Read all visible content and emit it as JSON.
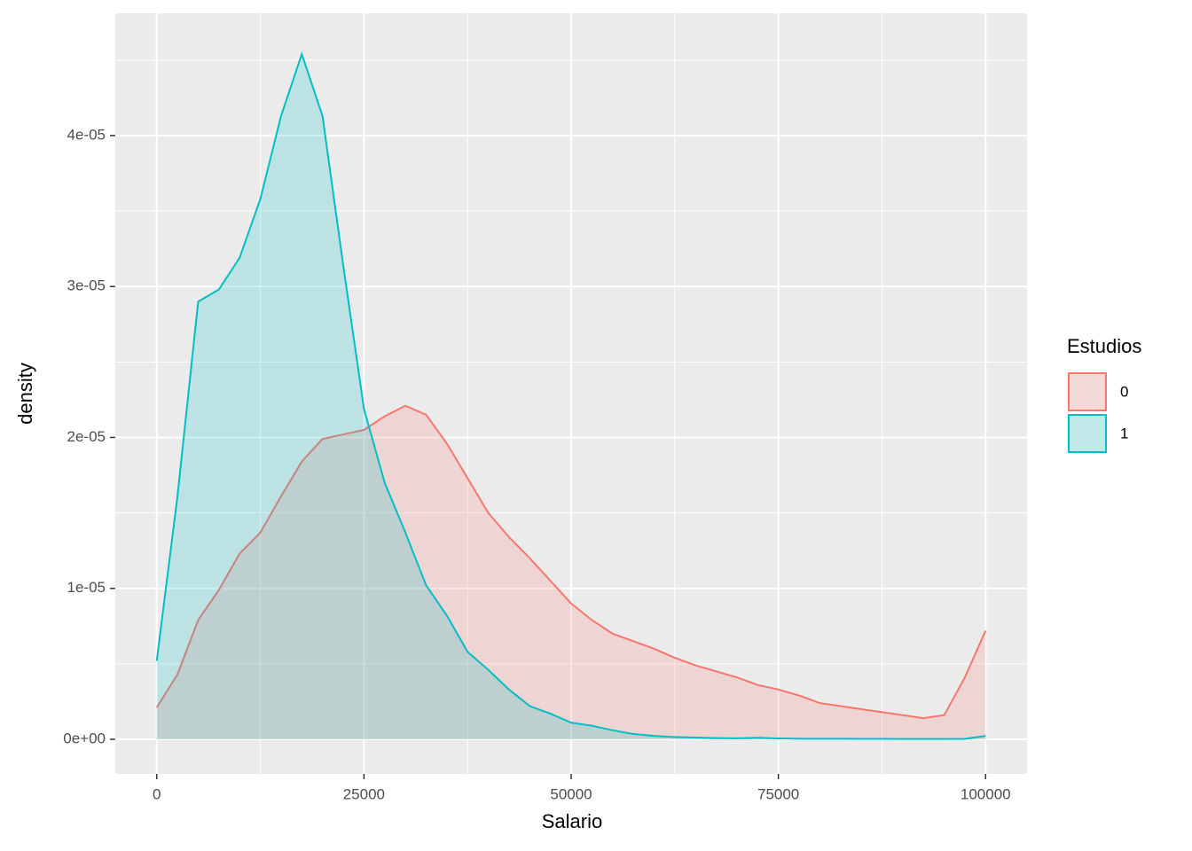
{
  "chart_data": {
    "type": "density",
    "x_label": "Salario",
    "y_label": "density",
    "legend_title": "Estudios",
    "legend_position": "right",
    "x": [
      0,
      2500,
      5000,
      7500,
      10000,
      12500,
      15000,
      17500,
      20000,
      22500,
      25000,
      27500,
      30000,
      32500,
      35000,
      37500,
      40000,
      42500,
      45000,
      47500,
      50000,
      52500,
      55000,
      57500,
      60000,
      62500,
      65000,
      67500,
      70000,
      72500,
      75000,
      77500,
      80000,
      82500,
      85000,
      87500,
      90000,
      92500,
      95000,
      97500,
      100000
    ],
    "series": [
      {
        "name": "0",
        "color": "#F8766D",
        "values": [
          2.1e-06,
          4.3e-06,
          7.9e-06,
          9.9e-06,
          1.23e-05,
          1.37e-05,
          1.61e-05,
          1.84e-05,
          1.99e-05,
          2.02e-05,
          2.05e-05,
          2.14e-05,
          2.21e-05,
          2.15e-05,
          1.96e-05,
          1.73e-05,
          1.5e-05,
          1.34e-05,
          1.2e-05,
          1.05e-05,
          9e-06,
          7.9e-06,
          7e-06,
          6.5e-06,
          6e-06,
          5.4e-06,
          4.9e-06,
          4.5e-06,
          4.1e-06,
          3.6e-06,
          3.3e-06,
          2.9e-06,
          2.4e-06,
          2.2e-06,
          2e-06,
          1.8e-06,
          1.6e-06,
          1.4e-06,
          1.6e-06,
          4.1e-06,
          7.2e-06
        ]
      },
      {
        "name": "1",
        "color": "#00BFC4",
        "values": [
          5.2e-06,
          1.61e-05,
          2.9e-05,
          2.98e-05,
          3.19e-05,
          3.58e-05,
          4.13e-05,
          4.54e-05,
          4.13e-05,
          3.14e-05,
          2.19e-05,
          1.7e-05,
          1.37e-05,
          1.02e-05,
          8.2e-06,
          5.8e-06,
          4.6e-06,
          3.3e-06,
          2.2e-06,
          1.7e-06,
          1.1e-06,
          9e-07,
          6e-07,
          3.5e-07,
          2.3e-07,
          1.5e-07,
          1.2e-07,
          8e-08,
          7e-08,
          1e-07,
          6e-08,
          4e-08,
          4e-08,
          4e-08,
          3e-08,
          3e-08,
          2e-08,
          2e-08,
          2e-08,
          3e-08,
          2.3e-07
        ]
      }
    ],
    "xlim": [
      -5000,
      105000
    ],
    "xticks": [
      0,
      25000,
      50000,
      75000,
      100000
    ],
    "x_minor_ticks": [
      12500,
      37500,
      62500,
      87500
    ],
    "ylim": [
      -2.29e-06,
      4.81e-05
    ],
    "yticks": [
      {
        "value": 0,
        "label": "0e+00"
      },
      {
        "value": 1e-05,
        "label": "1e-05"
      },
      {
        "value": 2e-05,
        "label": "2e-05"
      },
      {
        "value": 3e-05,
        "label": "3e-05"
      },
      {
        "value": 4e-05,
        "label": "4e-05"
      }
    ],
    "y_minor_ticks": [
      5e-06,
      1.5e-05,
      2.5e-05,
      3.5e-05,
      4.5e-05
    ],
    "grid": true,
    "fill_alpha": 0.2,
    "panel_color": "#EBEBEB"
  }
}
